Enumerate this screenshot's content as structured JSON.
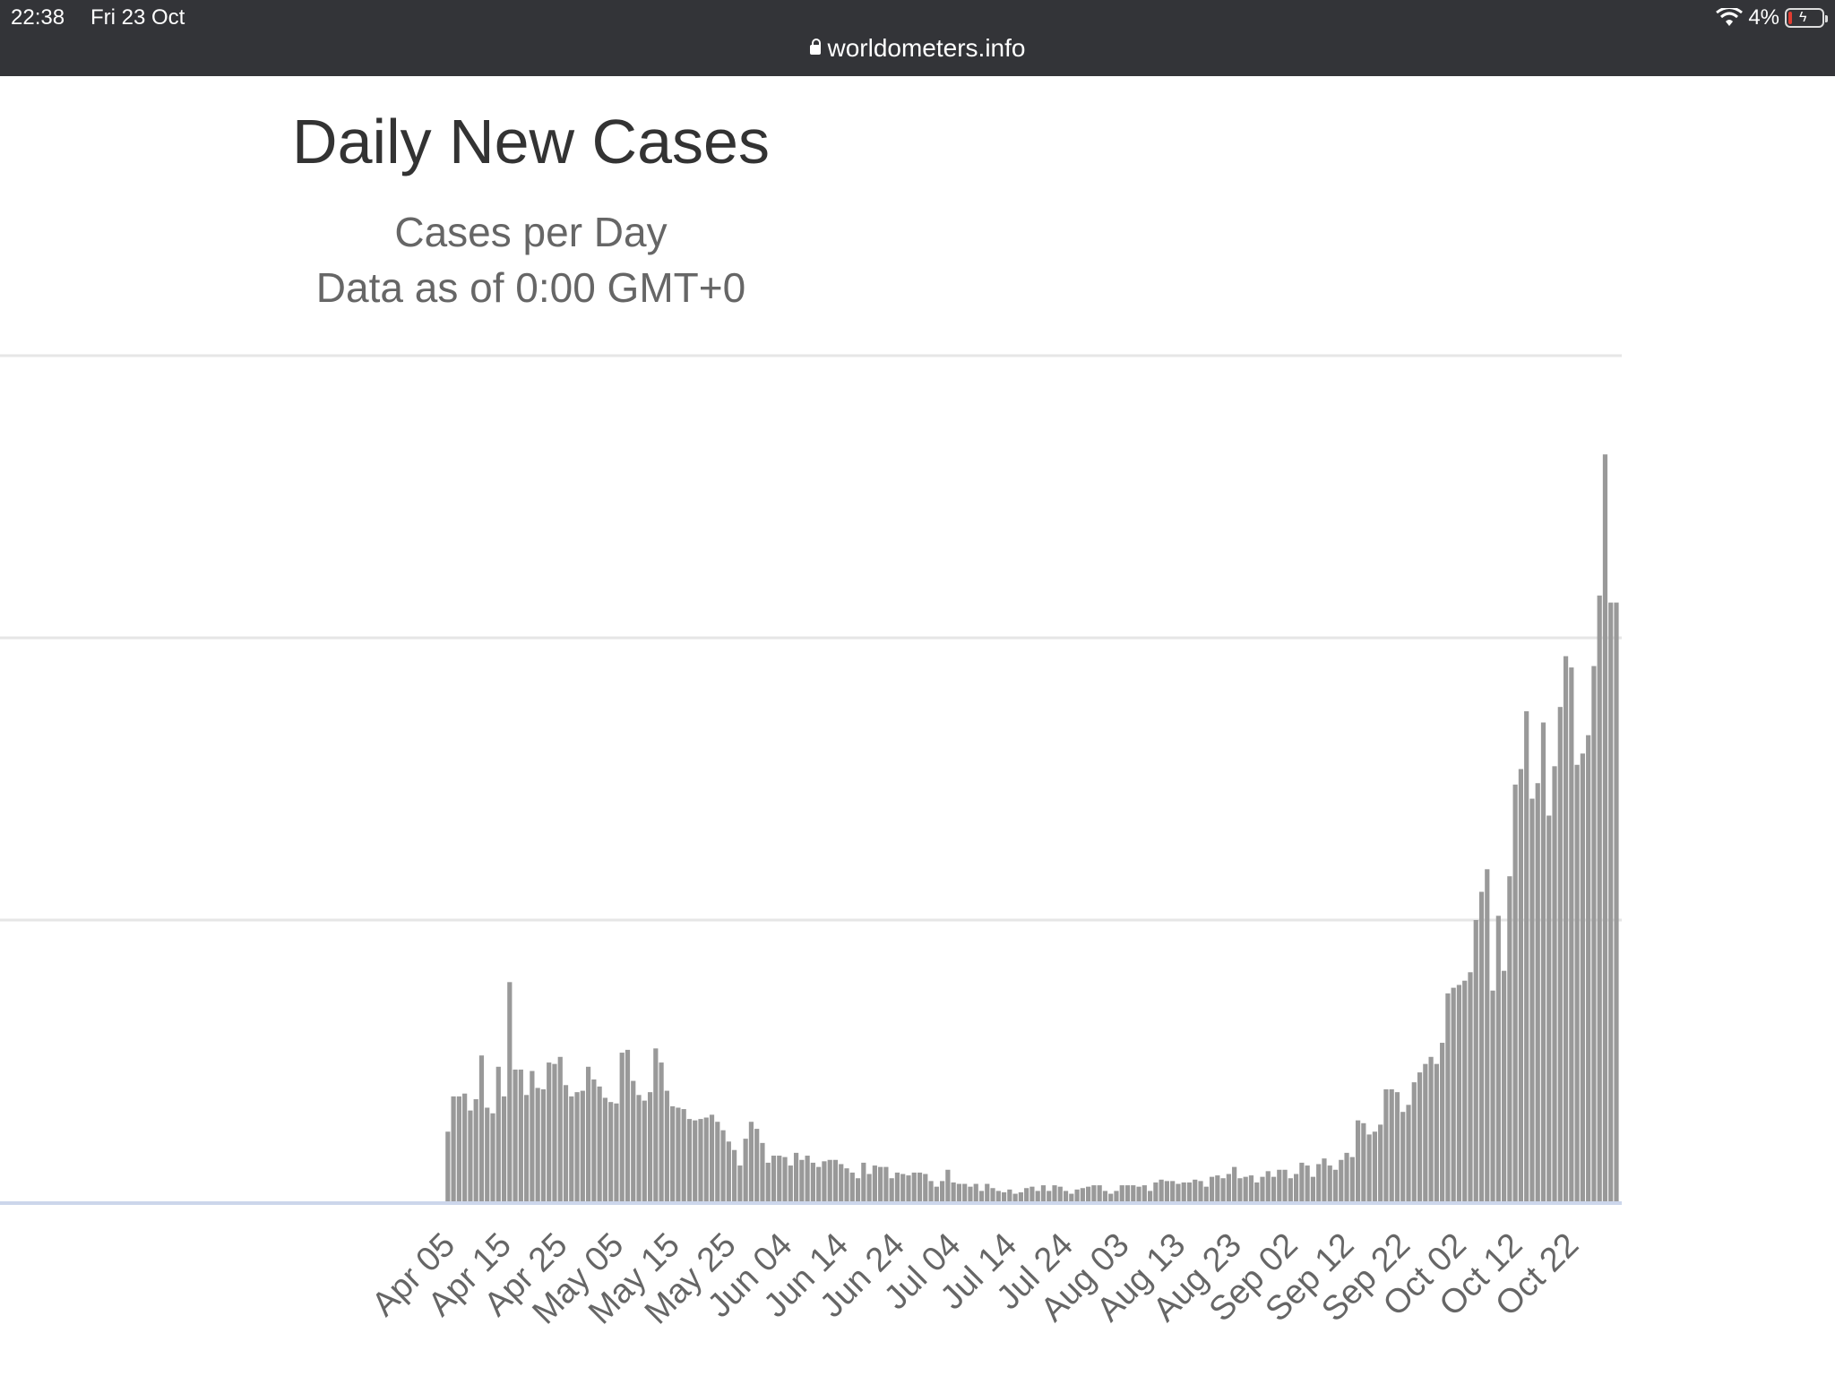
{
  "status_bar": {
    "time": "22:38",
    "date": "Fri 23 Oct",
    "battery": "4%",
    "url": "worldometers.info"
  },
  "chart_data": {
    "type": "bar",
    "title": "Daily New Cases",
    "subtitle_line1": "Cases per Day",
    "subtitle_line2": "Data as of 0:00 GMT+0",
    "xlabel": "",
    "ylabel": "",
    "grid": true,
    "legend": "none",
    "bar_color": "#999999",
    "ylim": [
      0,
      60000
    ],
    "gridline_values": [
      20000,
      40000,
      60000
    ],
    "x_tick_labels": [
      "Apr 05",
      "Apr 15",
      "Apr 25",
      "May 05",
      "May 15",
      "May 25",
      "Jun 04",
      "Jun 14",
      "Jun 24",
      "Jul 04",
      "Jul 14",
      "Jul 24",
      "Aug 03",
      "Aug 13",
      "Aug 23",
      "Sep 02",
      "Sep 12",
      "Sep 22",
      "Oct 02",
      "Oct 12",
      "Oct 22"
    ],
    "first_date": "Apr 05",
    "values": [
      5000,
      7500,
      7500,
      7700,
      6500,
      7300,
      10400,
      6700,
      6300,
      9600,
      7500,
      15600,
      9400,
      9400,
      7600,
      9300,
      8100,
      8000,
      9900,
      9800,
      10300,
      8300,
      7500,
      7800,
      7900,
      9600,
      8700,
      8200,
      7400,
      7100,
      7000,
      10600,
      10800,
      8600,
      7600,
      7200,
      7800,
      10900,
      9900,
      7900,
      6800,
      6700,
      6600,
      5900,
      5800,
      5900,
      6000,
      6200,
      5700,
      5100,
      4300,
      3700,
      2600,
      4500,
      5700,
      5200,
      4200,
      2800,
      3300,
      3300,
      3200,
      2600,
      3500,
      3000,
      3300,
      2800,
      2500,
      2900,
      3000,
      3000,
      2700,
      2400,
      2100,
      1700,
      2800,
      2000,
      2600,
      2500,
      2500,
      1700,
      2100,
      2000,
      1900,
      2100,
      2100,
      2000,
      1500,
      1100,
      1500,
      2300,
      1400,
      1300,
      1300,
      1100,
      1300,
      800,
      1300,
      1000,
      800,
      700,
      900,
      600,
      700,
      1000,
      1100,
      800,
      1200,
      800,
      1200,
      1100,
      800,
      600,
      900,
      1000,
      1100,
      1200,
      1200,
      800,
      600,
      800,
      1200,
      1200,
      1200,
      1100,
      1200,
      800,
      1400,
      1600,
      1500,
      1500,
      1300,
      1400,
      1400,
      1600,
      1500,
      1100,
      1800,
      1900,
      1700,
      2000,
      2500,
      1700,
      1800,
      1900,
      1400,
      1800,
      2200,
      1800,
      2300,
      2300,
      1700,
      2000,
      2800,
      2600,
      1800,
      2700,
      3100,
      2600,
      2300,
      3000,
      3500,
      3200,
      5800,
      5600,
      4800,
      5000,
      5500,
      8000,
      8000,
      7800,
      6400,
      6900,
      8500,
      9200,
      9800,
      10300,
      9800,
      11300,
      14800,
      15200,
      15400,
      15700,
      16300,
      20000,
      22000,
      23600,
      15000,
      20300,
      16400,
      23100,
      29600,
      30700,
      34800,
      28600,
      29700,
      34000,
      27400,
      30900,
      35100,
      38700,
      37900,
      31000,
      31800,
      33100,
      38000,
      43000,
      53000,
      42500,
      42500
    ]
  }
}
